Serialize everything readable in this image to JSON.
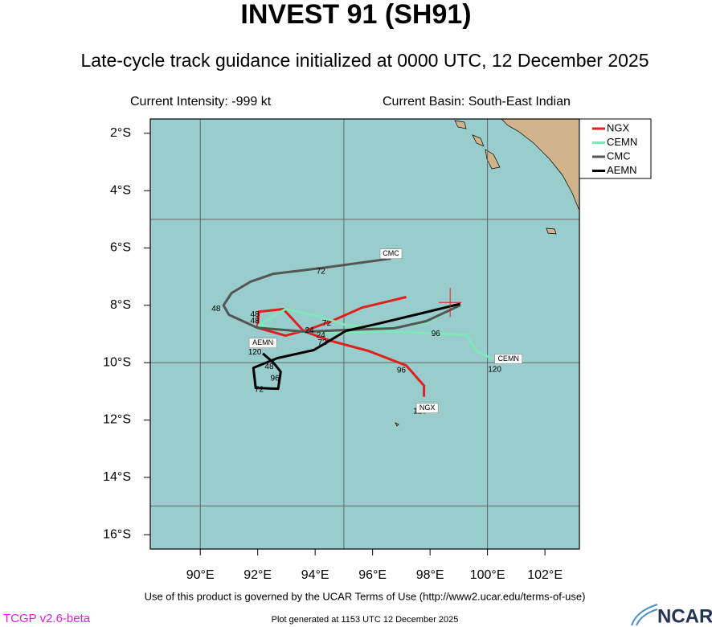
{
  "chart_data": {
    "type": "track-map",
    "title": "INVEST 91 (SH91)",
    "subtitle": "Late-cycle track guidance initialized at 0000 UTC, 12 December 2025",
    "intensity_text": "Current Intensity: -999 kt",
    "basin_text": "Current Basin: South-East Indian",
    "xlim": [
      88.26,
      103.2
    ],
    "ylim": [
      -16.5,
      -1.5
    ],
    "xticks": [
      {
        "value": 90,
        "label": "90°E"
      },
      {
        "value": 92,
        "label": "92°E"
      },
      {
        "value": 94,
        "label": "94°E"
      },
      {
        "value": 96,
        "label": "96°E"
      },
      {
        "value": 98,
        "label": "98°E"
      },
      {
        "value": 100,
        "label": "100°E"
      },
      {
        "value": 102,
        "label": "102°E"
      }
    ],
    "yticks": [
      {
        "value": -2,
        "label": "2°S"
      },
      {
        "value": -4,
        "label": "4°S"
      },
      {
        "value": -6,
        "label": "6°S"
      },
      {
        "value": -8,
        "label": "8°S"
      },
      {
        "value": -10,
        "label": "10°S"
      },
      {
        "value": -12,
        "label": "12°S"
      },
      {
        "value": -14,
        "label": "14°S"
      },
      {
        "value": -16,
        "label": "16°S"
      }
    ],
    "grid_lon": [
      90,
      95,
      100
    ],
    "grid_lat": [
      -5,
      -10,
      -15
    ],
    "current_position": {
      "lon": 98.7,
      "lat": -7.9,
      "color": "#e0201b"
    },
    "legend": "top-right-outside",
    "series": [
      {
        "name": "NGX",
        "color": "#e0201b",
        "lon": [
          97.17,
          96.47,
          95.63,
          95.07,
          94.57,
          93.81,
          92.97,
          91.99,
          92.04,
          92.89,
          93.6,
          94.51,
          95.85,
          97.17,
          97.79,
          97.79
        ],
        "lat": [
          -7.71,
          -7.88,
          -8.08,
          -8.33,
          -8.55,
          -8.83,
          -9.06,
          -8.78,
          -8.22,
          -8.13,
          -8.9,
          -9.23,
          -9.59,
          -10.1,
          -10.8,
          -11.19
        ],
        "hour_labels": [
          {
            "hour": 72,
            "lon": 94.4,
            "lat": -8.63
          },
          {
            "hour": 48,
            "lon": 91.9,
            "lat": -8.32
          },
          {
            "hour": 96,
            "lon": 97.0,
            "lat": -10.27
          },
          {
            "hour": 120,
            "lon": 97.65,
            "lat": -11.7
          }
        ]
      },
      {
        "name": "CEMN",
        "color": "#7fe8b8",
        "lon": [
          99.0,
          97.87,
          96.75,
          95.07,
          94.23,
          92.97,
          92.04,
          93.17,
          95.07,
          96.47,
          99.27,
          99.61,
          100.17
        ],
        "lat": [
          -8.0,
          -8.61,
          -8.78,
          -8.69,
          -8.41,
          -8.13,
          -8.7,
          -8.89,
          -8.97,
          -8.9,
          -9.03,
          -9.59,
          -9.87
        ],
        "hour_labels": [
          {
            "hour": 96,
            "lon": 98.2,
            "lat": -9.0
          },
          {
            "hour": 120,
            "lon": 100.25,
            "lat": -10.25
          },
          {
            "hour": 48,
            "lon": 91.9,
            "lat": -8.55
          },
          {
            "hour": 24,
            "lon": 94.2,
            "lat": -9.05
          }
        ]
      },
      {
        "name": "CMC",
        "color": "#555555",
        "lon": [
          99.05,
          97.87,
          96.75,
          95.07,
          93.67,
          91.99,
          91.0,
          90.81,
          91.09,
          91.74,
          92.55,
          94.37,
          96.64
        ],
        "lat": [
          -8.0,
          -8.55,
          -8.8,
          -8.86,
          -8.92,
          -8.78,
          -8.33,
          -8.0,
          -7.57,
          -7.18,
          -6.9,
          -6.68,
          -6.37
        ],
        "hour_labels": [
          {
            "hour": 24,
            "lon": 93.8,
            "lat": -8.88
          },
          {
            "hour": 48,
            "lon": 90.55,
            "lat": -8.12
          },
          {
            "hour": 72,
            "lon": 94.2,
            "lat": -6.82
          }
        ]
      },
      {
        "name": "AEMN",
        "color": "#000000",
        "lon": [
          99.05,
          97.73,
          96.19,
          95.07,
          94.51,
          93.95,
          92.69,
          91.85,
          91.93,
          92.71,
          92.8,
          92.55,
          92.18
        ],
        "lat": [
          -7.95,
          -8.27,
          -8.64,
          -8.89,
          -9.23,
          -9.56,
          -9.84,
          -10.18,
          -10.88,
          -10.91,
          -10.32,
          -10.0,
          -9.68
        ],
        "hour_labels": [
          {
            "hour": 72,
            "lon": 94.25,
            "lat": -9.3
          },
          {
            "hour": 48,
            "lon": 92.4,
            "lat": -10.15
          },
          {
            "hour": 96,
            "lon": 92.6,
            "lat": -10.55
          },
          {
            "hour": 72,
            "lon": 92.05,
            "lat": -10.95
          },
          {
            "hour": 120,
            "lon": 91.9,
            "lat": -9.64
          }
        ]
      }
    ],
    "terms_text": "Use of this product is governed by the UCAR Terms of Use (http://www2.ucar.edu/terms-of-use)",
    "version_text": "TCGP v2.6-beta",
    "generated_text": "Plot generated at 1153 UTC   12 December 2025",
    "logo_text": "NCAR"
  }
}
